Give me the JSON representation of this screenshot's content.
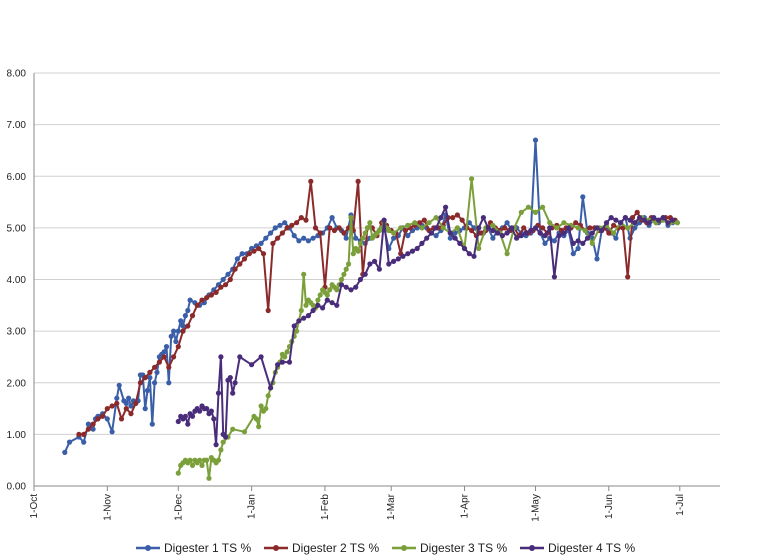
{
  "chart_data": {
    "type": "line",
    "title": "",
    "xlabel": "",
    "ylabel": "",
    "ylim": [
      0,
      8
    ],
    "yticks": [
      "0.00",
      "1.00",
      "2.00",
      "3.00",
      "4.00",
      "5.00",
      "6.00",
      "7.00",
      "8.00"
    ],
    "x_tick_labels": [
      "1-Oct",
      "1-Nov",
      "1-Dec",
      "1-Jan",
      "1-Feb",
      "1-Mar",
      "1-Apr",
      "1-May",
      "1-Jun",
      "1-Jul"
    ],
    "x_tick_days": [
      0,
      31,
      61,
      92,
      123,
      151,
      182,
      212,
      243,
      273
    ],
    "grid": true,
    "legend_position": "bottom",
    "series": [
      {
        "name": "Digester 1 TS %",
        "color": "#3b5ea8",
        "x": [
          13,
          15,
          19,
          21,
          23,
          25,
          26,
          27,
          28,
          29,
          31,
          33,
          35,
          36,
          38,
          39,
          40,
          41,
          42,
          43,
          44,
          45,
          46,
          47,
          48,
          49,
          50,
          51,
          52,
          53,
          54,
          55,
          56,
          57,
          58,
          59,
          60,
          61,
          62,
          63,
          64,
          65,
          66,
          68,
          70,
          72,
          74,
          76,
          78,
          80,
          82,
          84,
          86,
          88,
          90,
          92,
          94,
          96,
          98,
          100,
          102,
          104,
          106,
          108,
          110,
          112,
          114,
          116,
          118,
          120,
          122,
          124,
          126,
          128,
          130,
          132,
          134,
          136,
          138,
          140,
          142,
          144,
          146,
          148,
          150,
          152,
          154,
          156,
          158,
          160,
          162,
          164,
          166,
          168,
          170,
          172,
          174,
          176,
          178,
          180,
          182,
          184,
          186,
          188,
          190,
          192,
          194,
          196,
          198,
          200,
          202,
          204,
          206,
          208,
          210,
          212,
          214,
          216,
          218,
          220,
          222,
          224,
          226,
          228,
          230,
          232,
          234,
          236,
          238,
          240,
          242,
          244,
          246,
          248,
          250,
          252,
          254,
          256,
          258,
          260,
          262,
          264,
          266,
          268,
          270,
          272
        ],
        "values": [
          0.65,
          0.85,
          0.95,
          0.85,
          1.2,
          1.1,
          1.3,
          1.35,
          1.35,
          1.4,
          1.3,
          1.05,
          1.7,
          1.95,
          1.65,
          1.6,
          1.7,
          1.55,
          1.65,
          1.6,
          1.65,
          2.15,
          2.15,
          1.5,
          1.85,
          2.1,
          1.2,
          2.0,
          2.2,
          2.5,
          2.55,
          2.6,
          2.7,
          2.0,
          2.9,
          3.0,
          2.8,
          3.0,
          3.2,
          3.1,
          3.3,
          3.4,
          3.6,
          3.55,
          3.5,
          3.55,
          3.7,
          3.8,
          3.9,
          4.0,
          4.1,
          4.2,
          4.4,
          4.5,
          4.5,
          4.6,
          4.65,
          4.7,
          4.8,
          4.9,
          5.0,
          5.05,
          5.1,
          5.0,
          4.85,
          4.75,
          4.8,
          4.75,
          4.8,
          4.85,
          4.9,
          5.0,
          5.2,
          5.0,
          4.95,
          4.8,
          5.25,
          4.8,
          4.75,
          4.7,
          4.8,
          4.85,
          4.95,
          5.0,
          4.6,
          4.8,
          4.85,
          5.0,
          4.85,
          4.95,
          5.0,
          5.05,
          5.0,
          4.9,
          4.85,
          4.95,
          5.25,
          4.8,
          4.9,
          4.95,
          5.0,
          5.1,
          5.0,
          4.9,
          4.9,
          5.0,
          4.8,
          4.95,
          5.0,
          5.1,
          4.95,
          5.0,
          4.9,
          4.85,
          4.9,
          6.7,
          4.9,
          4.7,
          4.8,
          4.75,
          4.9,
          4.85,
          4.95,
          4.5,
          4.6,
          5.6,
          4.9,
          4.8,
          4.4,
          4.95,
          5.0,
          4.9,
          4.8,
          5.1,
          5.2,
          4.8,
          5.0,
          5.1,
          5.2,
          5.05,
          5.15,
          5.1,
          5.2,
          5.05,
          5.1,
          5.1
        ]
      },
      {
        "name": "Digester 2 TS %",
        "color": "#8b2a2a",
        "x": [
          19,
          21,
          23,
          25,
          27,
          29,
          31,
          33,
          35,
          37,
          39,
          41,
          43,
          45,
          47,
          49,
          51,
          53,
          55,
          57,
          59,
          61,
          63,
          65,
          67,
          69,
          71,
          73,
          75,
          77,
          79,
          81,
          83,
          85,
          87,
          89,
          91,
          93,
          95,
          97,
          99,
          101,
          103,
          105,
          107,
          109,
          111,
          113,
          115,
          117,
          119,
          121,
          123,
          125,
          127,
          129,
          131,
          133,
          135,
          137,
          139,
          141,
          143,
          145,
          147,
          149,
          151,
          153,
          155,
          157,
          159,
          161,
          163,
          165,
          167,
          169,
          171,
          173,
          175,
          177,
          179,
          181,
          183,
          185,
          187,
          189,
          191,
          193,
          195,
          197,
          199,
          201,
          203,
          205,
          207,
          209,
          211,
          213,
          215,
          217,
          219,
          221,
          223,
          225,
          227,
          229,
          231,
          233,
          235,
          237,
          239,
          241,
          243,
          245,
          247,
          249,
          251,
          253,
          255,
          257,
          259,
          261,
          263,
          265,
          267,
          269,
          271
        ],
        "values": [
          1.0,
          1.0,
          1.1,
          1.2,
          1.3,
          1.35,
          1.5,
          1.55,
          1.6,
          1.3,
          1.5,
          1.4,
          1.6,
          2.0,
          2.1,
          2.2,
          2.3,
          2.4,
          2.5,
          2.3,
          2.5,
          2.7,
          3.0,
          3.1,
          3.3,
          3.5,
          3.6,
          3.65,
          3.7,
          3.75,
          3.85,
          3.9,
          4.0,
          4.2,
          4.3,
          4.4,
          4.5,
          4.55,
          4.6,
          4.5,
          3.4,
          4.7,
          4.8,
          4.9,
          5.0,
          5.05,
          5.1,
          5.2,
          5.15,
          5.9,
          5.0,
          4.9,
          3.85,
          5.0,
          4.95,
          5.0,
          4.9,
          5.0,
          4.95,
          5.9,
          4.1,
          5.0,
          5.0,
          4.85,
          5.1,
          5.05,
          4.95,
          4.9,
          4.5,
          4.95,
          5.0,
          5.05,
          5.1,
          5.15,
          4.95,
          5.0,
          5.0,
          5.05,
          5.2,
          5.2,
          5.25,
          5.15,
          5.0,
          4.95,
          4.85,
          4.9,
          4.95,
          5.1,
          5.0,
          4.95,
          5.0,
          4.95,
          5.0,
          4.85,
          5.0,
          4.9,
          4.95,
          5.05,
          5.0,
          4.9,
          5.0,
          5.05,
          4.95,
          5.0,
          5.0,
          5.1,
          5.05,
          4.95,
          5.0,
          5.0,
          4.95,
          5.0,
          4.9,
          5.05,
          5.0,
          5.0,
          4.05,
          5.2,
          5.3,
          5.15,
          5.1,
          5.2,
          5.1,
          5.15,
          5.2,
          5.2,
          5.15
        ]
      },
      {
        "name": "Digester 3 TS %",
        "color": "#7ba03b",
        "x": [
          61,
          62,
          63,
          64,
          65,
          66,
          67,
          68,
          69,
          70,
          71,
          72,
          73,
          74,
          75,
          76,
          77,
          78,
          79,
          80,
          82,
          84,
          89,
          93,
          94,
          95,
          96,
          97,
          98,
          99,
          100,
          101,
          102,
          103,
          104,
          105,
          106,
          107,
          108,
          109,
          110,
          111,
          112,
          113,
          114,
          115,
          116,
          117,
          118,
          119,
          120,
          121,
          122,
          123,
          124,
          125,
          126,
          127,
          128,
          129,
          130,
          131,
          132,
          133,
          134,
          135,
          136,
          137,
          138,
          139,
          140,
          141,
          142,
          143,
          144,
          145,
          146,
          147,
          148,
          149,
          150,
          152,
          155,
          158,
          161,
          164,
          167,
          170,
          173,
          176,
          179,
          182,
          185,
          188,
          191,
          194,
          197,
          200,
          203,
          206,
          209,
          212,
          215,
          218,
          221,
          224,
          227,
          230,
          233,
          236,
          239,
          242,
          245,
          248,
          251,
          254,
          257,
          260,
          263,
          266,
          269,
          272
        ],
        "values": [
          0.25,
          0.4,
          0.45,
          0.5,
          0.45,
          0.5,
          0.4,
          0.5,
          0.45,
          0.5,
          0.4,
          0.5,
          0.5,
          0.15,
          0.55,
          0.5,
          0.45,
          0.5,
          0.7,
          0.85,
          0.95,
          1.1,
          1.05,
          1.35,
          1.3,
          1.15,
          1.55,
          1.45,
          1.5,
          1.75,
          1.9,
          2.0,
          2.2,
          2.3,
          2.4,
          2.55,
          2.5,
          2.6,
          2.7,
          2.8,
          2.9,
          3.0,
          3.2,
          3.4,
          4.1,
          3.5,
          3.6,
          3.55,
          3.5,
          3.45,
          3.6,
          3.7,
          3.8,
          3.75,
          3.7,
          3.8,
          3.9,
          3.85,
          3.8,
          3.9,
          4.0,
          4.1,
          4.2,
          4.3,
          5.2,
          4.5,
          4.6,
          4.55,
          4.7,
          4.8,
          4.9,
          5.0,
          5.1,
          4.8,
          4.85,
          4.9,
          4.95,
          5.0,
          5.1,
          5.0,
          4.95,
          4.9,
          5.0,
          5.05,
          5.1,
          5.0,
          5.1,
          5.2,
          5.0,
          4.9,
          5.0,
          4.6,
          5.95,
          4.6,
          5.0,
          5.05,
          4.9,
          4.5,
          5.0,
          5.3,
          5.4,
          5.3,
          5.4,
          5.1,
          5.0,
          5.1,
          5.05,
          5.0,
          4.95,
          4.7,
          5.0,
          5.05,
          4.9,
          5.1,
          5.0,
          5.1,
          5.2,
          5.15,
          5.1,
          5.15,
          5.1,
          5.1
        ]
      },
      {
        "name": "Digester 4 TS %",
        "color": "#4a2d7a",
        "x": [
          61,
          62,
          63,
          64,
          65,
          66,
          67,
          68,
          69,
          70,
          71,
          72,
          73,
          74,
          75,
          76,
          77,
          78,
          79,
          80,
          81,
          82,
          83,
          84,
          85,
          87,
          92,
          96,
          100,
          103,
          105,
          108,
          110,
          112,
          114,
          116,
          118,
          120,
          122,
          124,
          126,
          128,
          130,
          132,
          134,
          136,
          138,
          140,
          142,
          144,
          146,
          148,
          150,
          152,
          154,
          156,
          158,
          160,
          162,
          164,
          166,
          168,
          170,
          172,
          174,
          176,
          178,
          180,
          182,
          184,
          186,
          188,
          190,
          192,
          194,
          196,
          198,
          200,
          202,
          204,
          206,
          208,
          210,
          212,
          214,
          216,
          218,
          220,
          222,
          224,
          226,
          228,
          230,
          232,
          234,
          236,
          238,
          240,
          242,
          244,
          246,
          248,
          250,
          252,
          254,
          256,
          258,
          260,
          262,
          264,
          266,
          268,
          270
        ],
        "values": [
          1.25,
          1.35,
          1.3,
          1.35,
          1.2,
          1.4,
          1.35,
          1.45,
          1.5,
          1.45,
          1.55,
          1.5,
          1.5,
          1.4,
          1.45,
          1.3,
          0.8,
          1.8,
          2.5,
          1.0,
          0.95,
          2.05,
          2.1,
          1.8,
          2.0,
          2.5,
          2.35,
          2.5,
          1.9,
          2.35,
          2.4,
          2.4,
          3.1,
          3.2,
          3.25,
          3.3,
          3.4,
          3.5,
          3.45,
          3.6,
          3.55,
          3.5,
          3.9,
          3.85,
          3.8,
          3.85,
          4.0,
          4.1,
          4.3,
          4.35,
          4.2,
          5.15,
          4.3,
          4.35,
          4.4,
          4.45,
          4.5,
          4.55,
          4.6,
          4.7,
          4.8,
          4.9,
          5.0,
          5.2,
          5.4,
          4.9,
          4.8,
          4.7,
          4.6,
          4.5,
          4.45,
          5.0,
          5.2,
          5.0,
          4.95,
          4.9,
          4.85,
          4.9,
          5.0,
          4.8,
          4.85,
          4.9,
          4.95,
          5.0,
          4.9,
          4.85,
          5.0,
          4.05,
          4.85,
          4.9,
          5.0,
          4.7,
          4.75,
          4.7,
          4.8,
          4.9,
          5.0,
          4.95,
          5.1,
          5.2,
          5.15,
          5.1,
          5.2,
          5.15,
          5.1,
          5.2,
          5.15,
          5.1,
          5.2,
          5.15,
          5.2,
          5.1,
          5.15
        ]
      }
    ]
  }
}
